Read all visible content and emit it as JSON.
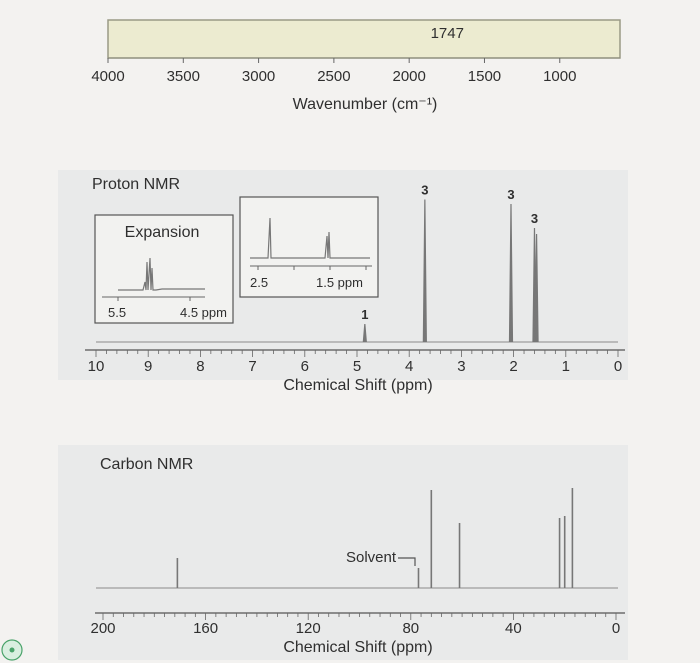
{
  "chart_data": [
    {
      "type": "line",
      "chart": "ir",
      "xlabel": "Wavenumber (cm⁻¹)",
      "x_ticks": [
        4000,
        3500,
        3000,
        2500,
        2000,
        1500,
        1000
      ],
      "xlim": [
        4000,
        600
      ],
      "peak_labels": [
        {
          "x": 1747,
          "label": "1747"
        }
      ]
    },
    {
      "type": "line",
      "chart": "proton_nmr",
      "title": "Proton NMR",
      "xlabel": "Chemical Shift (ppm)",
      "x_ticks": [
        10,
        9,
        8,
        7,
        6,
        5,
        4,
        3,
        2,
        1,
        0
      ],
      "xlim": [
        10,
        0
      ],
      "peaks": [
        {
          "shift": 4.85,
          "height": 0.12,
          "integration": "1"
        },
        {
          "shift": 3.7,
          "height": 0.95,
          "integration": "3"
        },
        {
          "shift": 2.05,
          "height": 0.92,
          "integration": "3"
        },
        {
          "shift": 1.6,
          "height": 0.76,
          "integration": "3"
        },
        {
          "shift": 1.56,
          "height": 0.72,
          "integration": ""
        }
      ],
      "insets": [
        {
          "title": "Expansion",
          "x_ticks": [
            "5.5",
            "4.5 ppm"
          ]
        },
        {
          "title": "",
          "x_ticks": [
            "2.5",
            "1.5 ppm"
          ]
        }
      ]
    },
    {
      "type": "line",
      "chart": "carbon_nmr",
      "title": "Carbon NMR",
      "xlabel": "Chemical Shift (ppm)",
      "x_ticks": [
        200,
        160,
        120,
        80,
        40,
        0
      ],
      "xlim": [
        200,
        0
      ],
      "peaks": [
        {
          "shift": 171,
          "height": 0.3
        },
        {
          "shift": 77,
          "height": 0.2
        },
        {
          "shift": 72,
          "height": 0.98
        },
        {
          "shift": 61,
          "height": 0.65
        },
        {
          "shift": 22,
          "height": 0.7
        },
        {
          "shift": 20,
          "height": 0.72
        },
        {
          "shift": 17,
          "height": 1.0
        }
      ],
      "annotation": "Solvent"
    }
  ]
}
